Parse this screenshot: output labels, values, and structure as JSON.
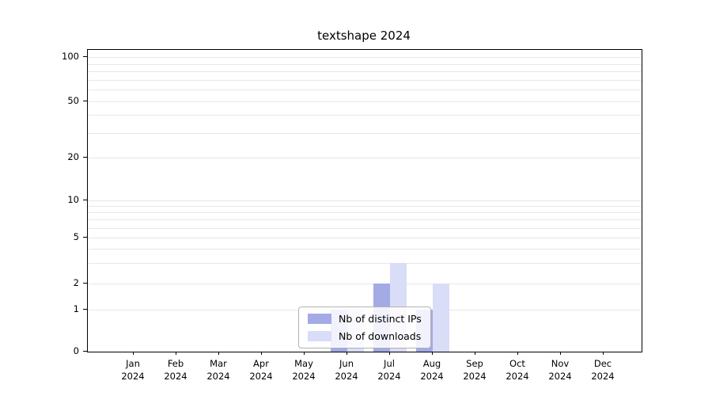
{
  "figure": {
    "title": "textshape 2024"
  },
  "chart_data": {
    "type": "bar",
    "title": "textshape 2024",
    "year": "2024",
    "categories": [
      "Jan",
      "Feb",
      "Mar",
      "Apr",
      "May",
      "Jun",
      "Jul",
      "Aug",
      "Sep",
      "Oct",
      "Nov",
      "Dec"
    ],
    "series": [
      {
        "name": "Nb of distinct IPs",
        "color": "#a3aae4",
        "values": [
          0,
          0,
          0,
          0,
          0,
          1,
          2,
          1,
          0,
          0,
          0,
          0
        ]
      },
      {
        "name": "Nb of downloads",
        "color": "#d9ddf8",
        "values": [
          0,
          0,
          0,
          0,
          0,
          1,
          3,
          2,
          0,
          0,
          0,
          0
        ]
      }
    ],
    "yticks": [
      0,
      1,
      2,
      5,
      10,
      20,
      50,
      100
    ],
    "ylim": [
      0,
      100
    ],
    "yscale": "log-like",
    "grid": "horizontal-minor",
    "legend_position": "lower center",
    "minor_gridline_values": [
      1,
      2,
      3,
      4,
      5,
      6,
      7,
      8,
      9,
      10,
      20,
      30,
      40,
      50,
      60,
      70,
      80,
      90,
      100
    ]
  }
}
